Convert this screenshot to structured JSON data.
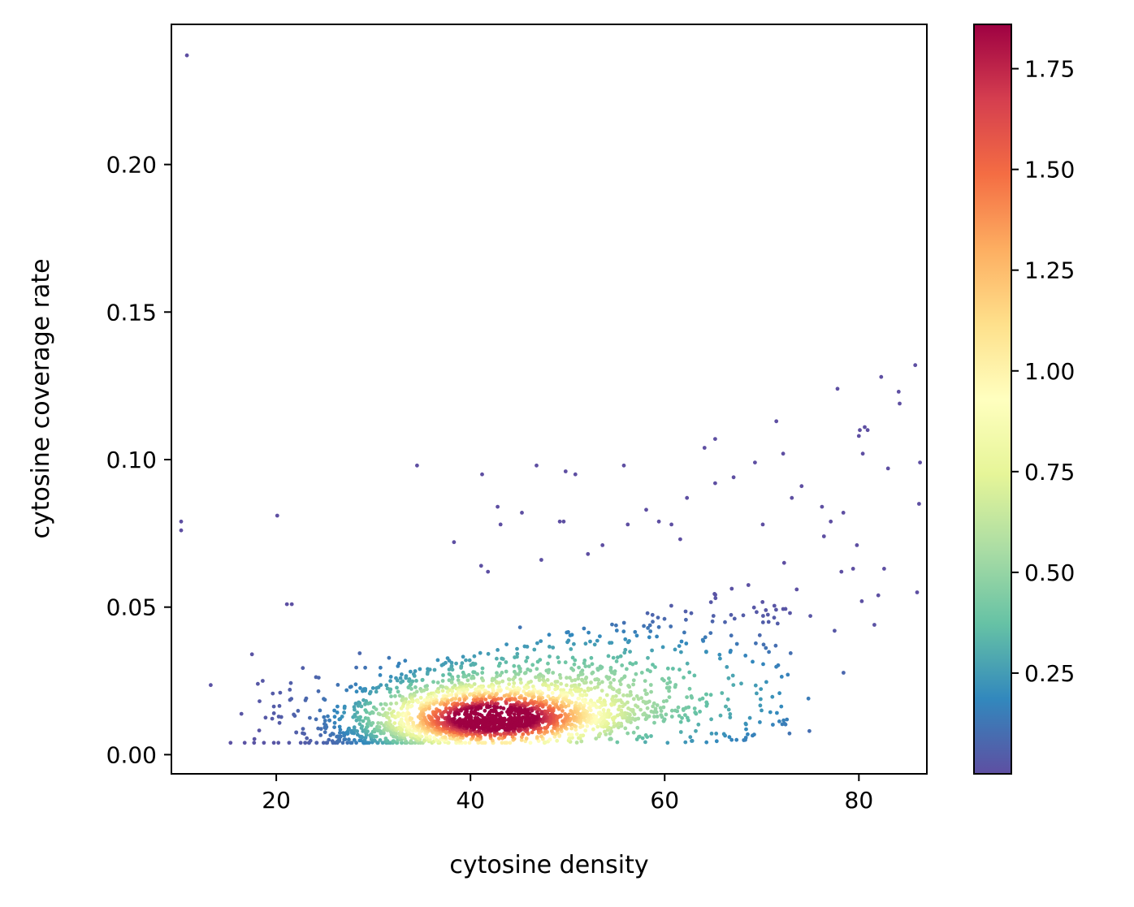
{
  "chart_data": {
    "type": "scatter",
    "title": "",
    "xlabel": "cytosine density",
    "ylabel": "cytosine coverage rate",
    "xlim": [
      9.2,
      87.0
    ],
    "ylim": [
      -0.0065,
      0.2475
    ],
    "x_ticks": [
      20,
      40,
      60,
      80
    ],
    "x_tick_labels": [
      "20",
      "40",
      "60",
      "80"
    ],
    "y_ticks": [
      0.0,
      0.05,
      0.1,
      0.15,
      0.2
    ],
    "y_tick_labels": [
      "0.00",
      "0.05",
      "0.10",
      "0.15",
      "0.20"
    ],
    "grid": false,
    "colormap": "Spectral_r",
    "colormap_stops": [
      "#5e4fa2",
      "#3288bd",
      "#66c2a5",
      "#abdda4",
      "#e6f598",
      "#ffffbf",
      "#fee08b",
      "#fdae61",
      "#f46d43",
      "#d53e4f",
      "#9e0142"
    ],
    "colorbar": {
      "min": 0.0,
      "max": 1.86,
      "ticks": [
        0.25,
        0.5,
        0.75,
        1.0,
        1.25,
        1.5,
        1.75
      ],
      "tick_labels": [
        "0.25",
        "0.50",
        "0.75",
        "1.00",
        "1.25",
        "1.50",
        "1.75"
      ]
    },
    "cluster": {
      "center": [
        42,
        0.012
      ],
      "point_count": 2600,
      "description_values": {
        "x_sd": 8,
        "y_sd": 0.009
      }
    },
    "outlier_points": [
      [
        10.8,
        0.237
      ],
      [
        10.2,
        0.079
      ],
      [
        10.2,
        0.076
      ],
      [
        20.1,
        0.081
      ],
      [
        17.5,
        0.034
      ],
      [
        18.1,
        0.024
      ],
      [
        18.6,
        0.025
      ],
      [
        21.1,
        0.051
      ],
      [
        21.6,
        0.051
      ],
      [
        21.4,
        0.022
      ],
      [
        20.4,
        0.021
      ],
      [
        24.5,
        0.015
      ],
      [
        25.1,
        0.01
      ],
      [
        25.3,
        0.013
      ],
      [
        34.5,
        0.098
      ],
      [
        41.2,
        0.095
      ],
      [
        42.8,
        0.084
      ],
      [
        43.1,
        0.078
      ],
      [
        45.3,
        0.082
      ],
      [
        46.8,
        0.098
      ],
      [
        49.8,
        0.096
      ],
      [
        50.8,
        0.095
      ],
      [
        55.8,
        0.098
      ],
      [
        38.3,
        0.072
      ],
      [
        41.1,
        0.064
      ],
      [
        41.8,
        0.062
      ],
      [
        49.2,
        0.079
      ],
      [
        49.6,
        0.079
      ],
      [
        47.3,
        0.066
      ],
      [
        52.1,
        0.068
      ],
      [
        53.6,
        0.071
      ],
      [
        56.2,
        0.078
      ],
      [
        58.1,
        0.083
      ],
      [
        59.4,
        0.079
      ],
      [
        60.7,
        0.078
      ],
      [
        61.6,
        0.073
      ],
      [
        62.3,
        0.087
      ],
      [
        64.1,
        0.104
      ],
      [
        65.2,
        0.107
      ],
      [
        65.2,
        0.092
      ],
      [
        67.1,
        0.094
      ],
      [
        69.3,
        0.099
      ],
      [
        70.1,
        0.078
      ],
      [
        71.5,
        0.113
      ],
      [
        72.2,
        0.102
      ],
      [
        73.1,
        0.087
      ],
      [
        74.1,
        0.091
      ],
      [
        76.2,
        0.084
      ],
      [
        77.8,
        0.124
      ],
      [
        78.4,
        0.082
      ],
      [
        80.1,
        0.11
      ],
      [
        80.6,
        0.111
      ],
      [
        80.9,
        0.11
      ],
      [
        80.4,
        0.102
      ],
      [
        80.0,
        0.108
      ],
      [
        82.3,
        0.128
      ],
      [
        83.0,
        0.097
      ],
      [
        84.1,
        0.123
      ],
      [
        84.2,
        0.119
      ],
      [
        85.8,
        0.132
      ],
      [
        86.3,
        0.099
      ],
      [
        86.2,
        0.085
      ],
      [
        86.0,
        0.055
      ],
      [
        82.6,
        0.063
      ],
      [
        82.0,
        0.054
      ],
      [
        81.6,
        0.044
      ],
      [
        80.3,
        0.052
      ],
      [
        79.8,
        0.071
      ],
      [
        79.4,
        0.063
      ],
      [
        77.5,
        0.042
      ],
      [
        77.1,
        0.079
      ],
      [
        78.2,
        0.062
      ],
      [
        76.4,
        0.074
      ],
      [
        75.0,
        0.047
      ],
      [
        74.8,
        0.019
      ],
      [
        74.9,
        0.008
      ],
      [
        73.6,
        0.056
      ],
      [
        72.9,
        0.048
      ],
      [
        72.3,
        0.065
      ],
      [
        70.7,
        0.045
      ],
      [
        69.8,
        0.011
      ],
      [
        68.3,
        0.005
      ],
      [
        67.4,
        0.005
      ],
      [
        66.9,
        0.005
      ],
      [
        66.1,
        0.007
      ],
      [
        64.8,
        0.012
      ],
      [
        63.2,
        0.008
      ],
      [
        60.3,
        0.004
      ],
      [
        61.4,
        0.016
      ],
      [
        58.2,
        0.006
      ]
    ]
  }
}
